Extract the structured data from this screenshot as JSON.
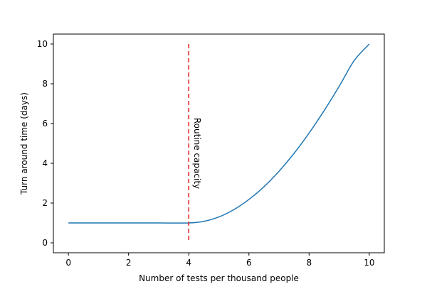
{
  "chart_data": {
    "type": "line",
    "title": "",
    "xlabel": "Number of tests per thousand people",
    "ylabel": "Turn around time (days)",
    "xlim": [
      -0.5,
      10.5
    ],
    "ylim": [
      -0.5,
      10.5
    ],
    "xticks": [
      0,
      2,
      4,
      6,
      8,
      10
    ],
    "yticks": [
      0,
      2,
      4,
      6,
      8,
      10
    ],
    "grid": false,
    "series": [
      {
        "color": "#1f77b4",
        "x": [
          0,
          1,
          2,
          3,
          4,
          4.5,
          5,
          5.5,
          6,
          6.5,
          7,
          7.5,
          8,
          8.5,
          9,
          9.5,
          10
        ],
        "y": [
          1,
          1,
          1,
          1,
          1,
          1.08,
          1.3,
          1.67,
          2.18,
          2.82,
          3.6,
          4.5,
          5.52,
          6.65,
          7.87,
          9.17,
          10
        ]
      }
    ],
    "vline": {
      "x": 4,
      "y_range": [
        0,
        10
      ],
      "color": "#e41a1c",
      "style": "dashed",
      "label": "Routine capacity"
    }
  }
}
